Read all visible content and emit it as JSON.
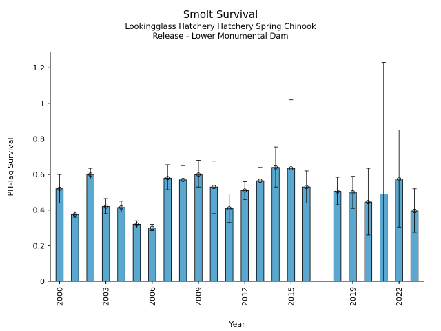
{
  "figure": {
    "title": "Smolt Survival",
    "subtitle_line1": "Lookingglass Hatchery Hatchery Spring Chinook",
    "subtitle_line2": "Release - Lower Monumental Dam"
  },
  "colors": {
    "bar_fill": "#5aa8d0",
    "bar_edge": "#000000",
    "error_bar": "#000000"
  },
  "chart_data": {
    "type": "bar",
    "xlabel": "Year",
    "ylabel": "PIT-Tag Survival",
    "ylim": [
      0,
      1.29
    ],
    "xlim": [
      1999.4,
      2023.6
    ],
    "yticks": [
      0,
      0.2,
      0.4,
      0.6,
      0.8,
      1,
      1.2
    ],
    "ytick_labels": [
      "0",
      "0.2",
      "0.4",
      "0.6",
      "0.8",
      "1",
      "1.2"
    ],
    "xticks": [
      2000,
      2003,
      2006,
      2009,
      2012,
      2015,
      2019,
      2022
    ],
    "xtick_labels": [
      "2000",
      "2003",
      "2006",
      "2009",
      "2012",
      "2015",
      "2019",
      "2022"
    ],
    "grid": false,
    "series": [
      {
        "bars": [
          {
            "year": 2000,
            "value": 0.52,
            "lower": 0.44,
            "upper": 0.6
          },
          {
            "year": 2001,
            "value": 0.375,
            "lower": 0.36,
            "upper": 0.39
          },
          {
            "year": 2002,
            "value": 0.6,
            "lower": 0.575,
            "upper": 0.635
          },
          {
            "year": 2003,
            "value": 0.42,
            "lower": 0.38,
            "upper": 0.465
          },
          {
            "year": 2004,
            "value": 0.415,
            "lower": 0.39,
            "upper": 0.45
          },
          {
            "year": 2005,
            "value": 0.32,
            "lower": 0.3,
            "upper": 0.34
          },
          {
            "year": 2006,
            "value": 0.3,
            "lower": 0.285,
            "upper": 0.32
          },
          {
            "year": 2007,
            "value": 0.58,
            "lower": 0.515,
            "upper": 0.655
          },
          {
            "year": 2008,
            "value": 0.57,
            "lower": 0.49,
            "upper": 0.65
          },
          {
            "year": 2009,
            "value": 0.6,
            "lower": 0.53,
            "upper": 0.68
          },
          {
            "year": 2010,
            "value": 0.53,
            "lower": 0.38,
            "upper": 0.675
          },
          {
            "year": 2011,
            "value": 0.41,
            "lower": 0.33,
            "upper": 0.49
          },
          {
            "year": 2012,
            "value": 0.51,
            "lower": 0.46,
            "upper": 0.56
          },
          {
            "year": 2013,
            "value": 0.565,
            "lower": 0.49,
            "upper": 0.64
          },
          {
            "year": 2014,
            "value": 0.64,
            "lower": 0.53,
            "upper": 0.755
          },
          {
            "year": 2015,
            "value": 0.635,
            "lower": 0.25,
            "upper": 1.02
          },
          {
            "year": 2016,
            "value": 0.53,
            "lower": 0.44,
            "upper": 0.62
          },
          {
            "year": 2018,
            "value": 0.505,
            "lower": 0.43,
            "upper": 0.585
          },
          {
            "year": 2019,
            "value": 0.5,
            "lower": 0.41,
            "upper": 0.59
          },
          {
            "year": 2020,
            "value": 0.445,
            "lower": 0.26,
            "upper": 0.635
          },
          {
            "year": 2021,
            "value": 0.49,
            "lower": 0.0,
            "upper": 1.23,
            "marker": false
          },
          {
            "year": 2022,
            "value": 0.575,
            "lower": 0.305,
            "upper": 0.85
          },
          {
            "year": 2023,
            "value": 0.395,
            "lower": 0.275,
            "upper": 0.52
          }
        ]
      }
    ]
  }
}
